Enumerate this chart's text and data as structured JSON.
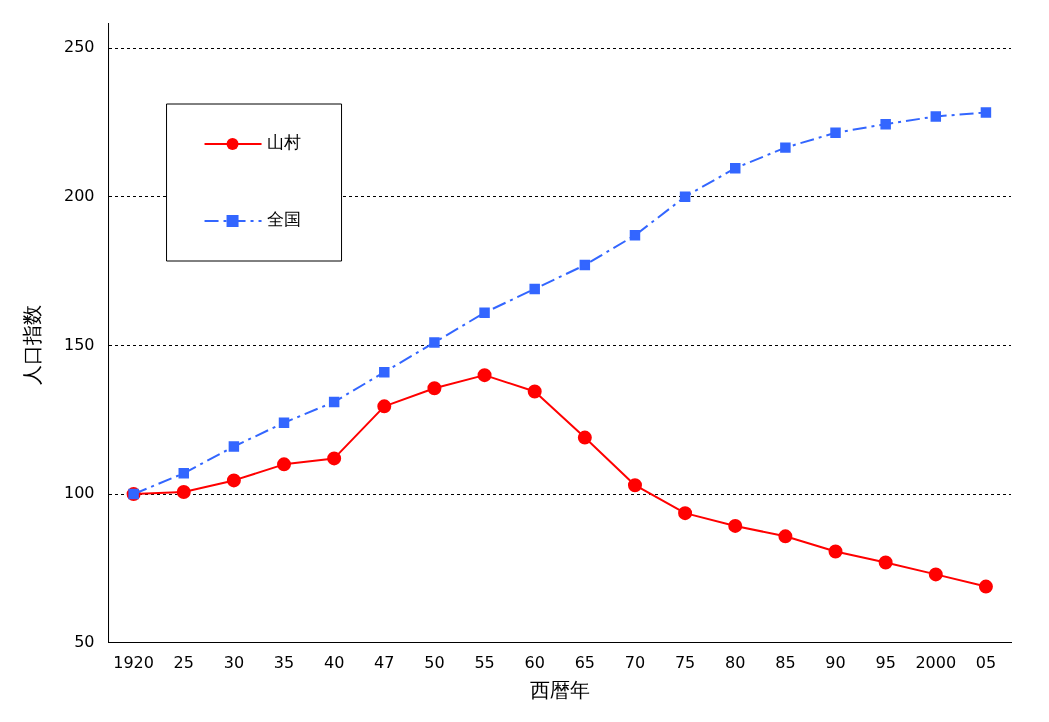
{
  "chart_data": {
    "type": "line",
    "xlabel": "西暦年",
    "ylabel": "人口指数",
    "categories": [
      "1920",
      "25",
      "30",
      "35",
      "40",
      "47",
      "50",
      "55",
      "60",
      "65",
      "70",
      "75",
      "80",
      "85",
      "90",
      "95",
      "2000",
      "05"
    ],
    "series": [
      {
        "name": "山村",
        "color": "#ff0000",
        "marker": "circle",
        "line_style": "solid",
        "values": [
          100,
          100.7,
          104.6,
          110,
          112,
          129.5,
          135.6,
          140,
          134.5,
          119,
          103,
          93.6,
          89.3,
          85.8,
          80.7,
          77,
          73,
          68.9
        ]
      },
      {
        "name": "全国",
        "color": "#3366ff",
        "marker": "square",
        "line_style": "dashed",
        "values": [
          100,
          107,
          116,
          124,
          131,
          141,
          151,
          161,
          169,
          177,
          187,
          200,
          209.6,
          216.5,
          221.5,
          224.4,
          227,
          228.3
        ]
      }
    ],
    "ylim": [
      50,
      250
    ],
    "yticks": [
      50,
      100,
      150,
      200,
      250
    ],
    "grid": "y",
    "legend": "top left"
  }
}
